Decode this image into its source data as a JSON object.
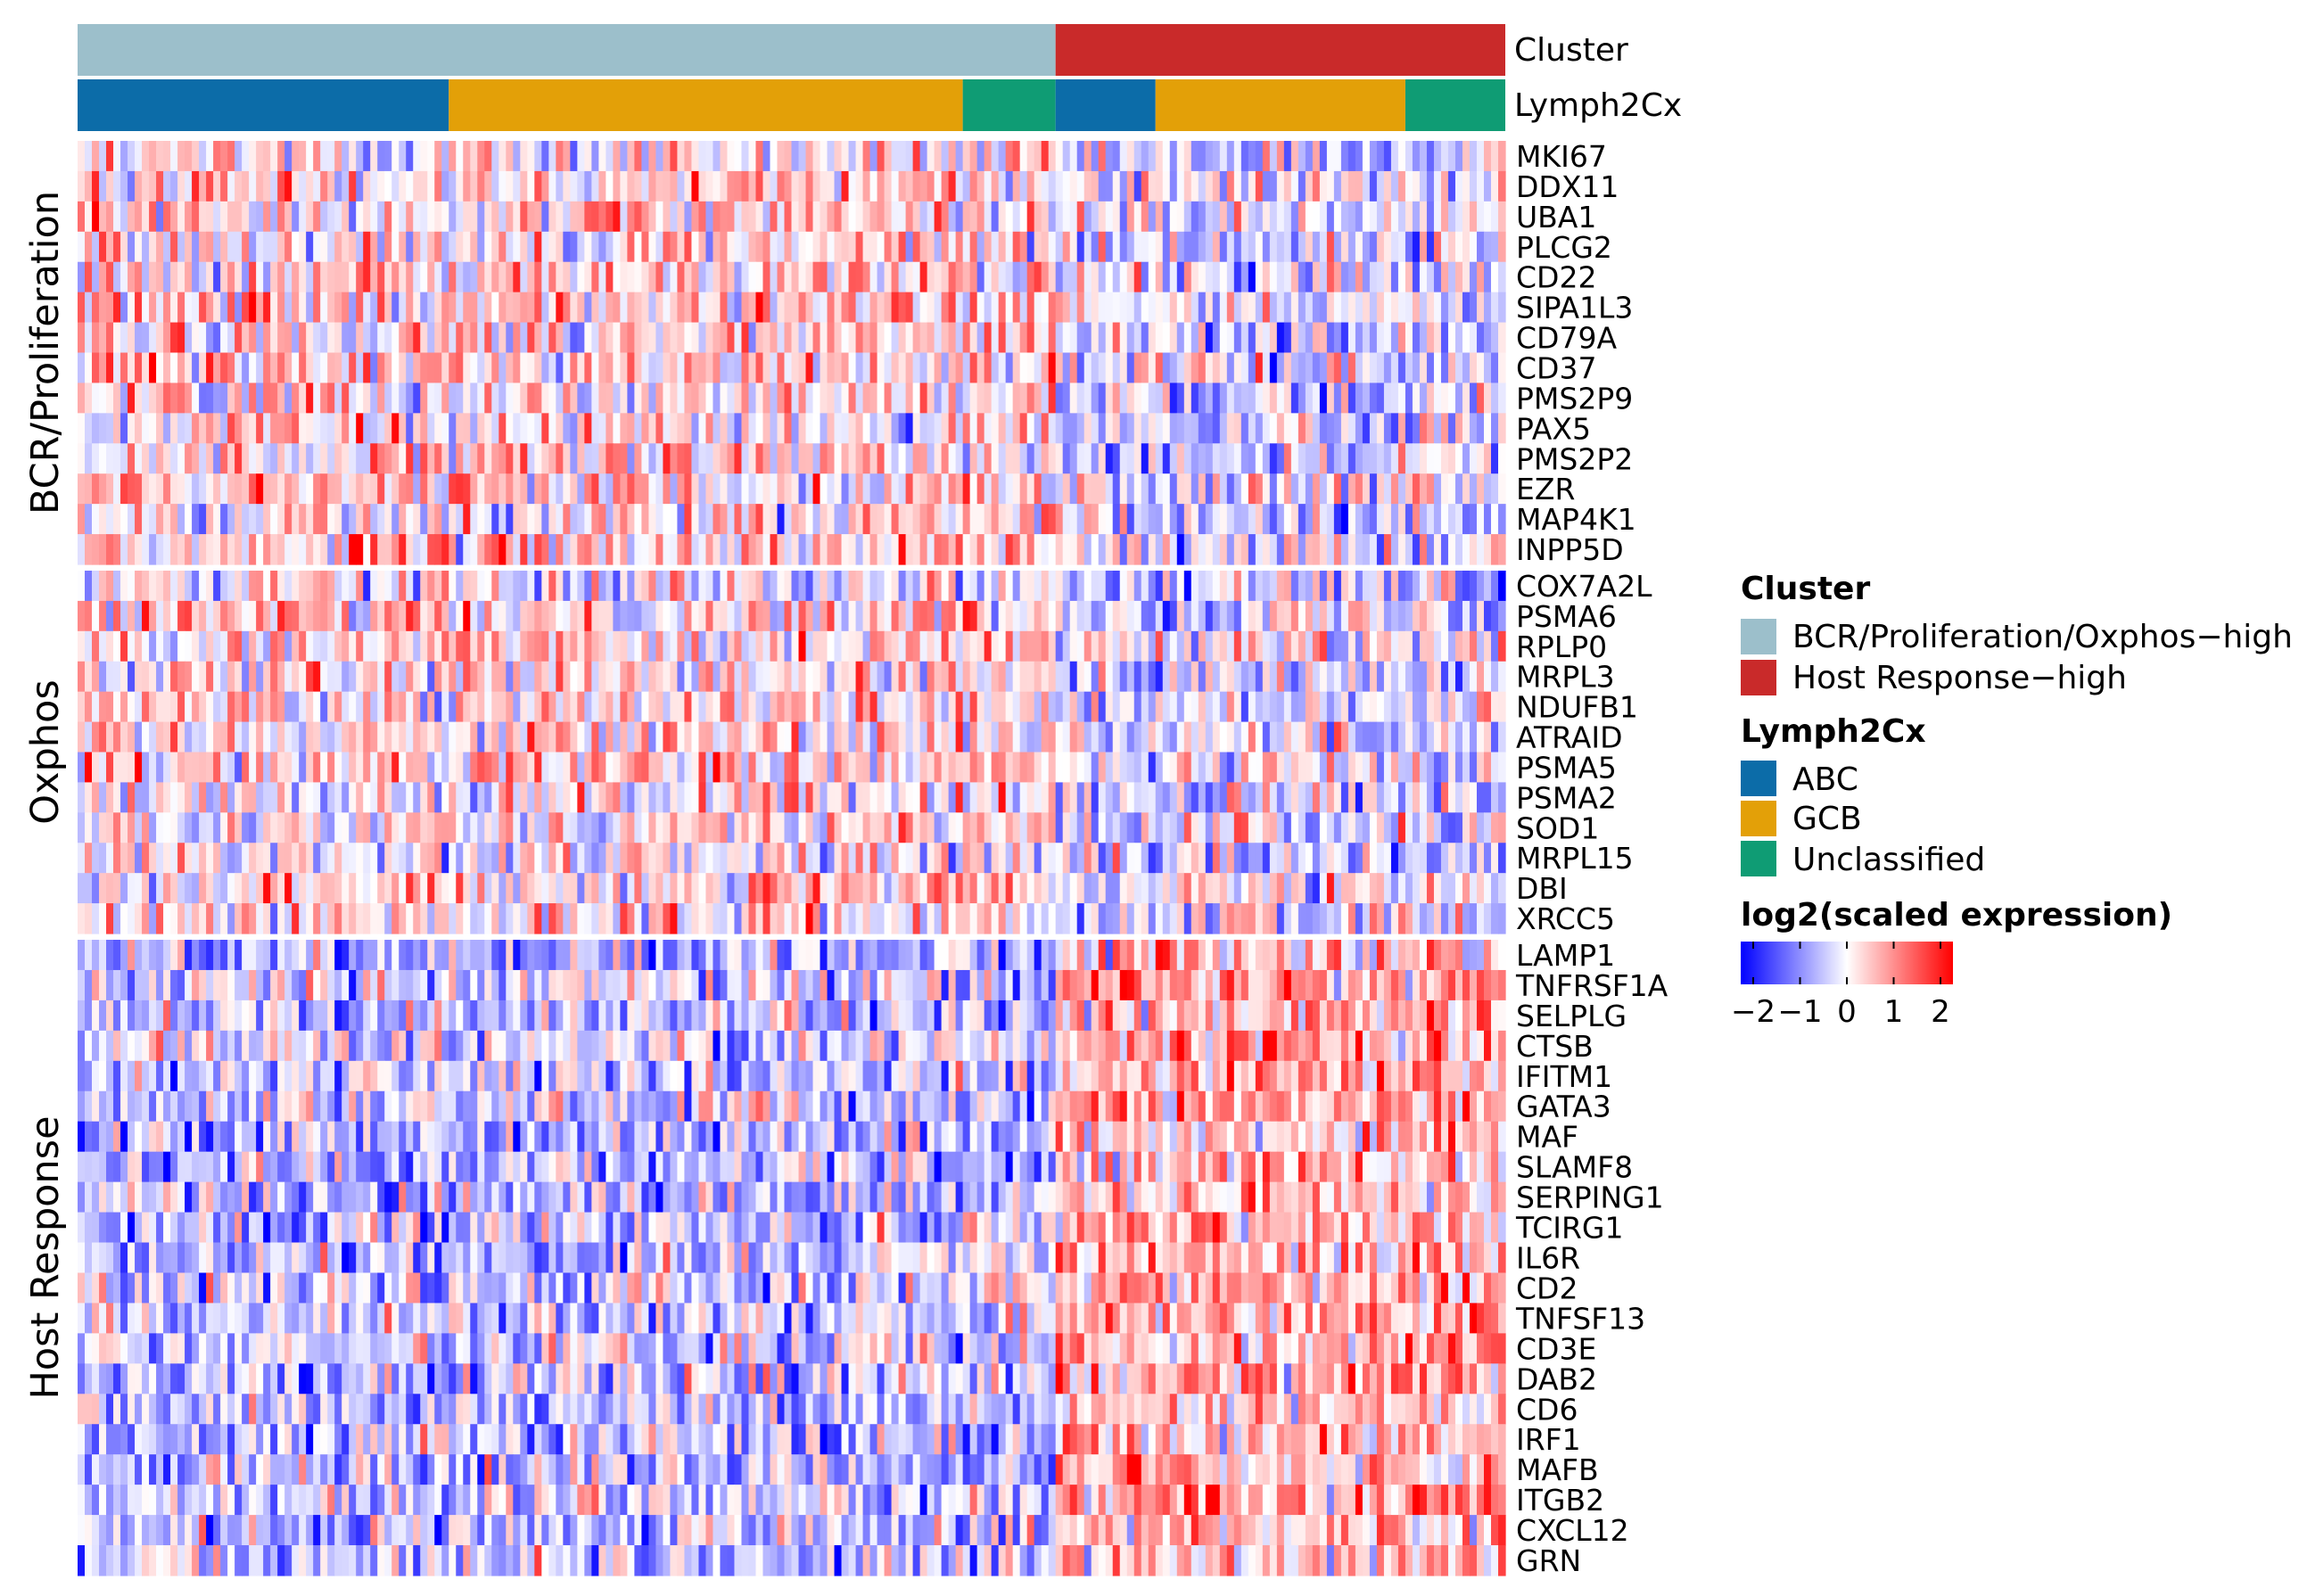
{
  "chart_data": {
    "type": "heatmap",
    "title": "",
    "n_samples": 200,
    "annotations": [
      {
        "name": "Cluster",
        "segments": [
          {
            "label": "BCR/Proliferation/Oxphos-high",
            "start": 0,
            "end": 137
          },
          {
            "label": "Host Response-high",
            "start": 137,
            "end": 200
          }
        ]
      },
      {
        "name": "Lymph2Cx",
        "segments": [
          {
            "label": "ABC",
            "start": 0,
            "end": 52
          },
          {
            "label": "GCB",
            "start": 52,
            "end": 124
          },
          {
            "label": "Unclassified",
            "start": 124,
            "end": 137
          },
          {
            "label": "ABC",
            "start": 137,
            "end": 151
          },
          {
            "label": "GCB",
            "start": 151,
            "end": 186
          },
          {
            "label": "Unclassified",
            "start": 186,
            "end": 200
          }
        ]
      }
    ],
    "row_groups": [
      {
        "label": "BCR/Proliferation",
        "rows": [
          "MKI67",
          "DDX11",
          "UBA1",
          "PLCG2",
          "CD22",
          "SIPA1L3",
          "CD79A",
          "CD37",
          "PMS2P9",
          "PAX5",
          "PMS2P2",
          "EZR",
          "MAP4K1",
          "INPP5D"
        ],
        "mean_cluster1": 0.25,
        "mean_cluster2": -0.3
      },
      {
        "label": "Oxphos",
        "rows": [
          "COX7A2L",
          "PSMA6",
          "RPLP0",
          "MRPL3",
          "NDUFB1",
          "ATRAID",
          "PSMA5",
          "PSMA2",
          "SOD1",
          "MRPL15",
          "DBI",
          "XRCC5"
        ],
        "mean_cluster1": 0.2,
        "mean_cluster2": -0.25
      },
      {
        "label": "Host Response",
        "rows": [
          "LAMP1",
          "TNFRSF1A",
          "SELPLG",
          "CTSB",
          "IFITM1",
          "GATA3",
          "MAF",
          "SLAMF8",
          "SERPING1",
          "TCIRG1",
          "IL6R",
          "CD2",
          "TNFSF13",
          "CD3E",
          "DAB2",
          "CD6",
          "IRF1",
          "MAFB",
          "ITGB2",
          "CXCL12",
          "GRN"
        ],
        "mean_cluster1": -0.35,
        "mean_cluster2": 0.65
      }
    ],
    "color_scale": {
      "name": "log2(scaled expression)",
      "range": [
        -2,
        2
      ],
      "ticks": [
        "−2",
        "−1",
        "0",
        "1",
        "2"
      ],
      "colors": {
        "low": "#0000ff",
        "mid": "#ffffff",
        "high": "#ff0000"
      }
    }
  },
  "annotation_labels": {
    "cluster": "Cluster",
    "lymph2cx": "Lymph2Cx"
  },
  "legend": {
    "cluster_title": "Cluster",
    "cluster_items": [
      {
        "label": "BCR/Proliferation/Oxphos−high",
        "color": "#9cbfcb"
      },
      {
        "label": "Host Response−high",
        "color": "#c92a2a"
      }
    ],
    "lymph2cx_title": "Lymph2Cx",
    "lymph2cx_items": [
      {
        "label": "ABC",
        "color": "#0c6ca8"
      },
      {
        "label": "GCB",
        "color": "#e3a008"
      },
      {
        "label": "Unclassified",
        "color": "#0f9c74"
      }
    ],
    "scale_title": "log2(scaled expression)"
  },
  "colors": {
    "cluster1": "#9cbfcb",
    "cluster2": "#c92a2a",
    "abc": "#0c6ca8",
    "gcb": "#e3a008",
    "unclassified": "#0f9c74"
  }
}
